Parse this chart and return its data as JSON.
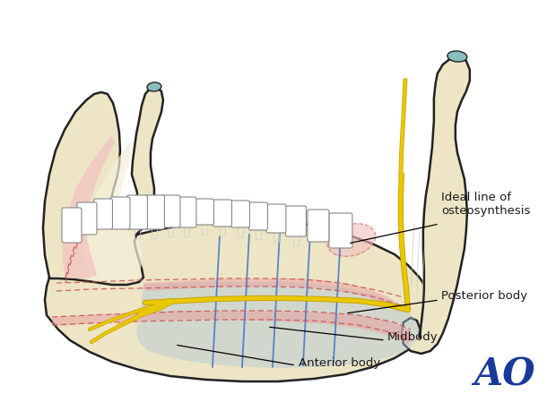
{
  "background_color": "#ffffff",
  "labels": {
    "ideal_line": "Ideal line of\nosteosynthesis",
    "posterior_body": "Posterior body",
    "midbody": "Midbody",
    "anterior_body": "Anterior body",
    "ao_logo": "AO"
  },
  "colors": {
    "bone": "#EDE5C5",
    "bone_light": "#F5F0DC",
    "bone_shadow": "#D8D0A8",
    "pink_tissue": "#E8A0A0",
    "pink_tissue_light": "#F2C0C0",
    "blue_region": "#B0C8D5",
    "blue_region_light": "#C8DCE8",
    "outline": "#222222",
    "outline_light": "#555555",
    "nerve_yellow": "#E8C800",
    "nerve_outline": "#C8A000",
    "blue_lines": "#4472C4",
    "dashed_pink": "#CC5555",
    "text_color": "#1a1a1a",
    "ao_color": "#1a3a9a",
    "teal_cap": "#8ABFC0",
    "white": "#ffffff",
    "tooth_outline": "#999999",
    "inner_bone": "#EEE8D0"
  }
}
